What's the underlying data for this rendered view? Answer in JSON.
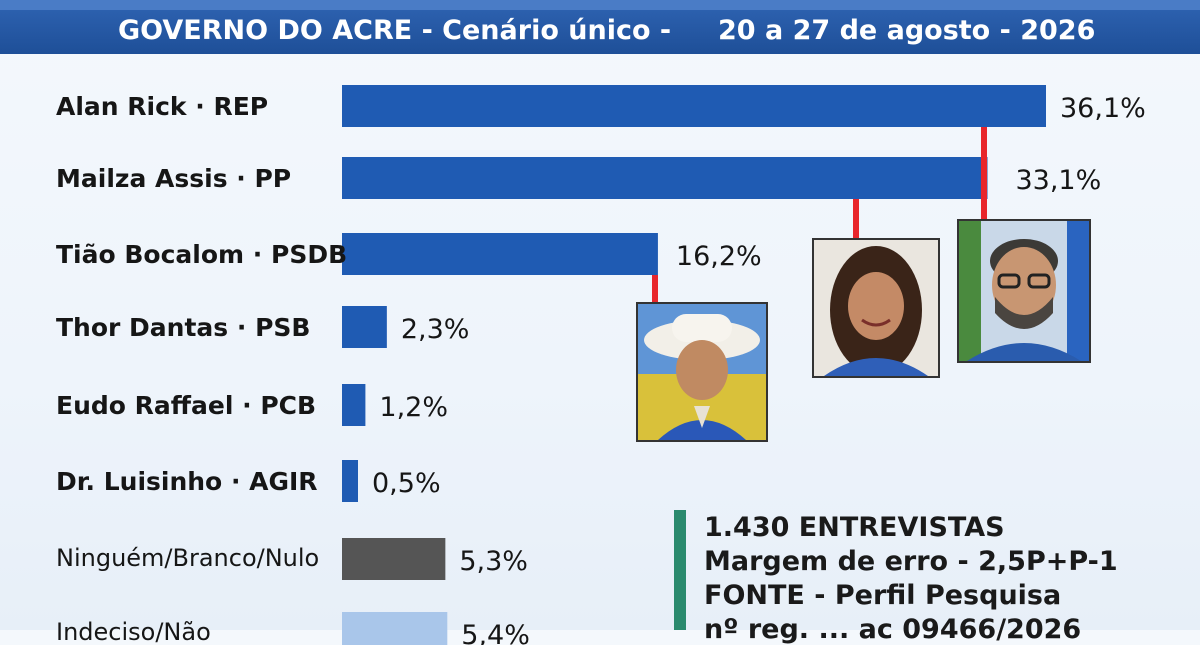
{
  "header": {
    "title": "GOVERNO DO ACRE - Cenário único -",
    "date": "20 a 27 de agosto - 2026"
  },
  "chart_data": {
    "type": "bar",
    "orientation": "horizontal",
    "categories": [
      "Alan Rick · REP",
      "Mailza Assis · PP",
      "Tião Bocalom · PSDB",
      "Thor Dantas · PSB",
      "Eudo Raffael · PCB",
      "Dr. Luisinho · AGIR",
      "Ninguém/Branco/Nulo",
      "Indeciso/Não"
    ],
    "values": [
      36.1,
      33.1,
      16.2,
      2.3,
      1.2,
      0.5,
      5.3,
      5.4
    ],
    "value_labels": [
      "36,1%",
      "33,1%",
      "16,2%",
      "2,3%",
      "1,2%",
      "0,5%",
      "5,3%",
      "5,4%"
    ],
    "bar_colors": [
      "#1f5bb3",
      "#1f5bb3",
      "#1f5bb3",
      "#1f5bb3",
      "#1f5bb3",
      "#1f5bb3",
      "#555555",
      "#a9c6ea"
    ],
    "title": "GOVERNO DO ACRE - Cenário único -",
    "xlim": [
      0,
      36.1
    ],
    "grid": false
  },
  "photos": [
    {
      "name": "tiao-bocalom-photo",
      "icon": "person-hat-icon"
    },
    {
      "name": "mailza-assis-photo",
      "icon": "person-icon"
    },
    {
      "name": "alan-rick-photo",
      "icon": "person-glasses-icon"
    }
  ],
  "info": {
    "interviews": "1.430 ENTREVISTAS",
    "margin": "Margem de erro - 2,5P+P-1",
    "source": "FONTE - Perfil Pesquisa",
    "registry": "nº reg. ... ac 09466/2026"
  },
  "colors": {
    "header_bg": "#1e4f98",
    "bar_blue": "#1f5bb3",
    "connector_red": "#e8262b",
    "info_bar": "#2a8a6e"
  }
}
